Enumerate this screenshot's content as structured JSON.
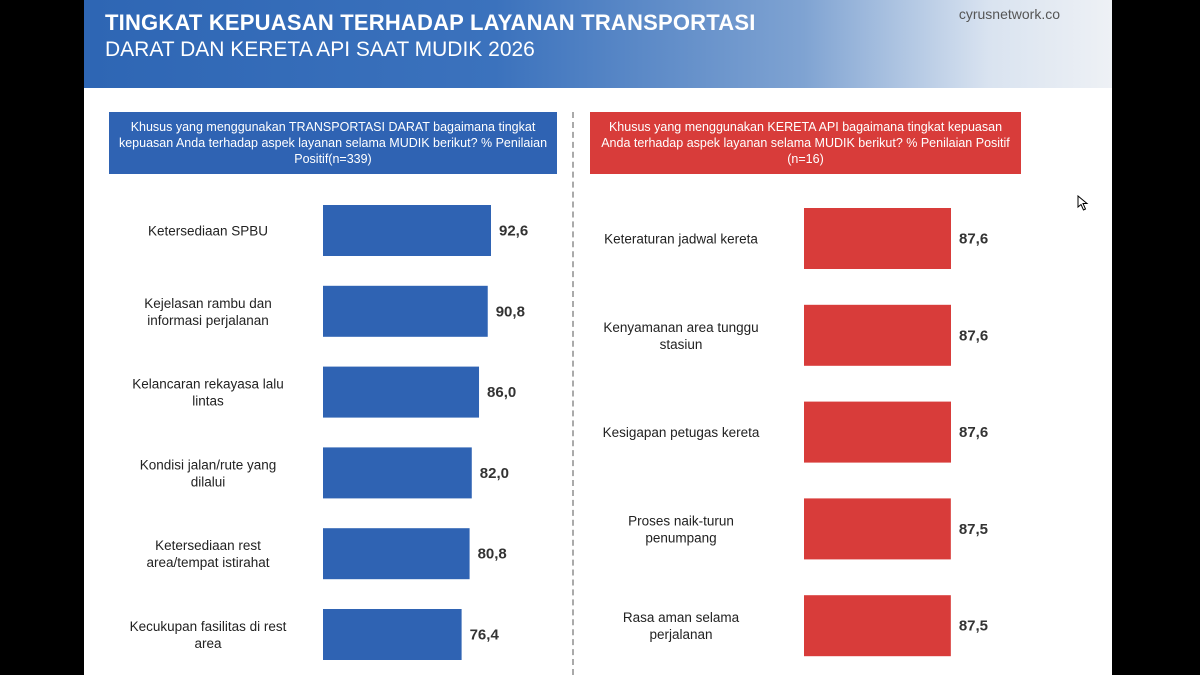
{
  "header": {
    "title_line1": "TINGKAT KEPUASAN TERHADAP LAYANAN TRANSPORTASI",
    "title_line2": "DARAT DAN KERETA API SAAT MUDIK 2026",
    "brand": "cyrusnetwork.co"
  },
  "colors": {
    "left_bar": "#2f63b3",
    "right_bar": "#d83c3a"
  },
  "chart_data": [
    {
      "type": "bar",
      "orientation": "horizontal",
      "title": "Khusus yang menggunakan TRANSPORTASI DARAT bagaimana tingkat kepuasan Anda terhadap aspek layanan selama MUDIK berikut? % Penilaian Positif(n=339)",
      "categories": [
        [
          "Ketersediaan SPBU"
        ],
        [
          "Kejelasan rambu dan",
          "informasi perjalanan"
        ],
        [
          "Kelancaran rekayasa lalu",
          "lintas"
        ],
        [
          "Kondisi jalan/rute yang",
          "dilalui"
        ],
        [
          "Ketersediaan rest",
          "area/tempat istirahat"
        ],
        [
          "Kecukupan fasilitas di rest",
          "area"
        ]
      ],
      "values": [
        92.6,
        90.8,
        86.0,
        82.0,
        80.8,
        76.4
      ],
      "value_labels": [
        "92,6",
        "90,8",
        "86,0",
        "82,0",
        "80,8",
        "76,4"
      ],
      "xlim": [
        0,
        100
      ]
    },
    {
      "type": "bar",
      "orientation": "horizontal",
      "title": "Khusus yang menggunakan KERETA API bagaimana tingkat kepuasan Anda terhadap aspek layanan selama MUDIK berikut? % Penilaian Positif (n=16)",
      "categories": [
        [
          "Keteraturan jadwal kereta"
        ],
        [
          "Kenyamanan area tunggu",
          "stasiun"
        ],
        [
          "Kesigapan petugas kereta"
        ],
        [
          "Proses naik-turun",
          "penumpang"
        ],
        [
          "Rasa aman selama",
          "perjalanan"
        ]
      ],
      "values": [
        87.6,
        87.6,
        87.6,
        87.5,
        87.5
      ],
      "value_labels": [
        "87,6",
        "87,6",
        "87,6",
        "87,5",
        "87,5"
      ],
      "xlim": [
        0,
        100
      ]
    }
  ]
}
